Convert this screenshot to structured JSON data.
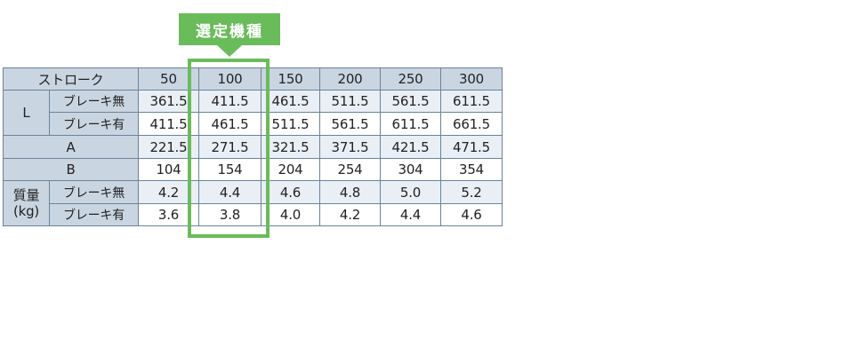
{
  "badge": {
    "label": "選定機種"
  },
  "table": {
    "header": {
      "stroke_label": "ストローク",
      "strokes": [
        "50",
        "100",
        "150",
        "200",
        "250",
        "300"
      ]
    },
    "labels": {
      "L": "L",
      "A": "A",
      "B": "B",
      "mass": "質量",
      "mass_unit": "(kg)",
      "brake_none": "ブレーキ無",
      "brake_with": "ブレーキ有"
    },
    "rows": {
      "L_no_brake": [
        "361.5",
        "411.5",
        "461.5",
        "511.5",
        "561.5",
        "611.5"
      ],
      "L_with_brake": [
        "411.5",
        "461.5",
        "511.5",
        "561.5",
        "611.5",
        "661.5"
      ],
      "A": [
        "221.5",
        "271.5",
        "321.5",
        "371.5",
        "421.5",
        "471.5"
      ],
      "B": [
        "104",
        "154",
        "204",
        "254",
        "304",
        "354"
      ],
      "mass_no_brake": [
        "4.2",
        "4.4",
        "4.6",
        "4.8",
        "5.0",
        "5.2"
      ],
      "mass_with_brake": [
        "3.6",
        "3.8",
        "4.0",
        "4.2",
        "4.4",
        "4.6"
      ]
    },
    "selected_stroke": "100",
    "colors": {
      "header_bg": "#c9d5e1",
      "band_bg": "#e9eff5",
      "border": "#6b8399",
      "highlight": "#6abb5a"
    }
  }
}
